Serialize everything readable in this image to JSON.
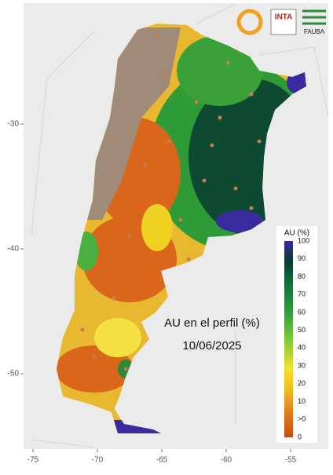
{
  "map": {
    "title": "AU en el perfil (%)",
    "date": "10/06/2025",
    "x_ticks": [
      -75,
      -70,
      -65,
      -60,
      -55
    ],
    "y_ticks": [
      -30,
      -40,
      -50
    ],
    "legend": {
      "title": "AU (%)",
      "labels": [
        "100",
        "90",
        "80",
        "70",
        "60",
        "50",
        "40",
        "30",
        "20",
        "10",
        ">0",
        "0"
      ]
    },
    "logos": [
      "INTA",
      "FAUBA"
    ]
  }
}
